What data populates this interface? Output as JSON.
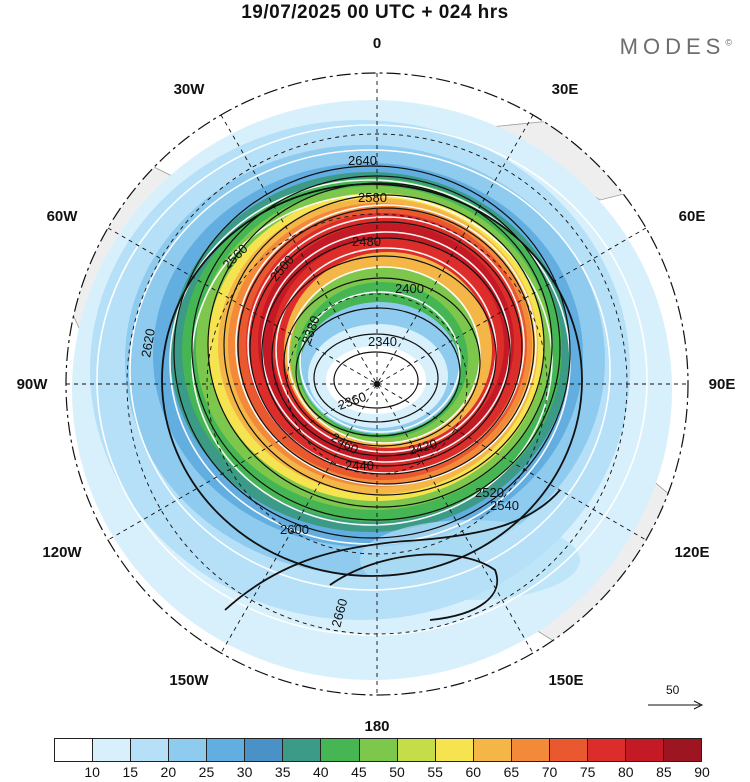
{
  "title": "19/07/2025  00 UTC  + 024 hrs",
  "brand": "MODES",
  "brand_mark": "©",
  "map": {
    "projection": "south-polar-stereographic",
    "longitude_labels": [
      {
        "text": "0",
        "deg": 0
      },
      {
        "text": "30E",
        "deg": 30
      },
      {
        "text": "60E",
        "deg": 60
      },
      {
        "text": "90E",
        "deg": 90
      },
      {
        "text": "120E",
        "deg": 120
      },
      {
        "text": "150E",
        "deg": 150
      },
      {
        "text": "180",
        "deg": 180
      },
      {
        "text": "150W",
        "deg": 210
      },
      {
        "text": "120W",
        "deg": 240
      },
      {
        "text": "90W",
        "deg": 270
      },
      {
        "text": "60W",
        "deg": 300
      },
      {
        "text": "30W",
        "deg": 330
      }
    ],
    "contour_labels": [
      "2340",
      "2360",
      "2380",
      "2400",
      "2420",
      "2440",
      "2460",
      "2480",
      "2500",
      "2520",
      "2540",
      "2560",
      "2580",
      "2600",
      "2620",
      "2640",
      "2660"
    ],
    "wind_reference_vector": "50"
  },
  "colorbar": {
    "ticks": [
      "10",
      "15",
      "20",
      "25",
      "30",
      "35",
      "40",
      "45",
      "50",
      "55",
      "60",
      "65",
      "70",
      "75",
      "80",
      "85",
      "90"
    ],
    "colors": [
      "#ffffff",
      "#d8f0fc",
      "#b5e0f7",
      "#8ecbee",
      "#63aee0",
      "#4a91c8",
      "#3b9b86",
      "#45b653",
      "#7dc84c",
      "#c6dd4a",
      "#f6e350",
      "#f5b648",
      "#f28a3a",
      "#e9582f",
      "#dc2d2b",
      "#c31a25",
      "#9c1520"
    ]
  }
}
